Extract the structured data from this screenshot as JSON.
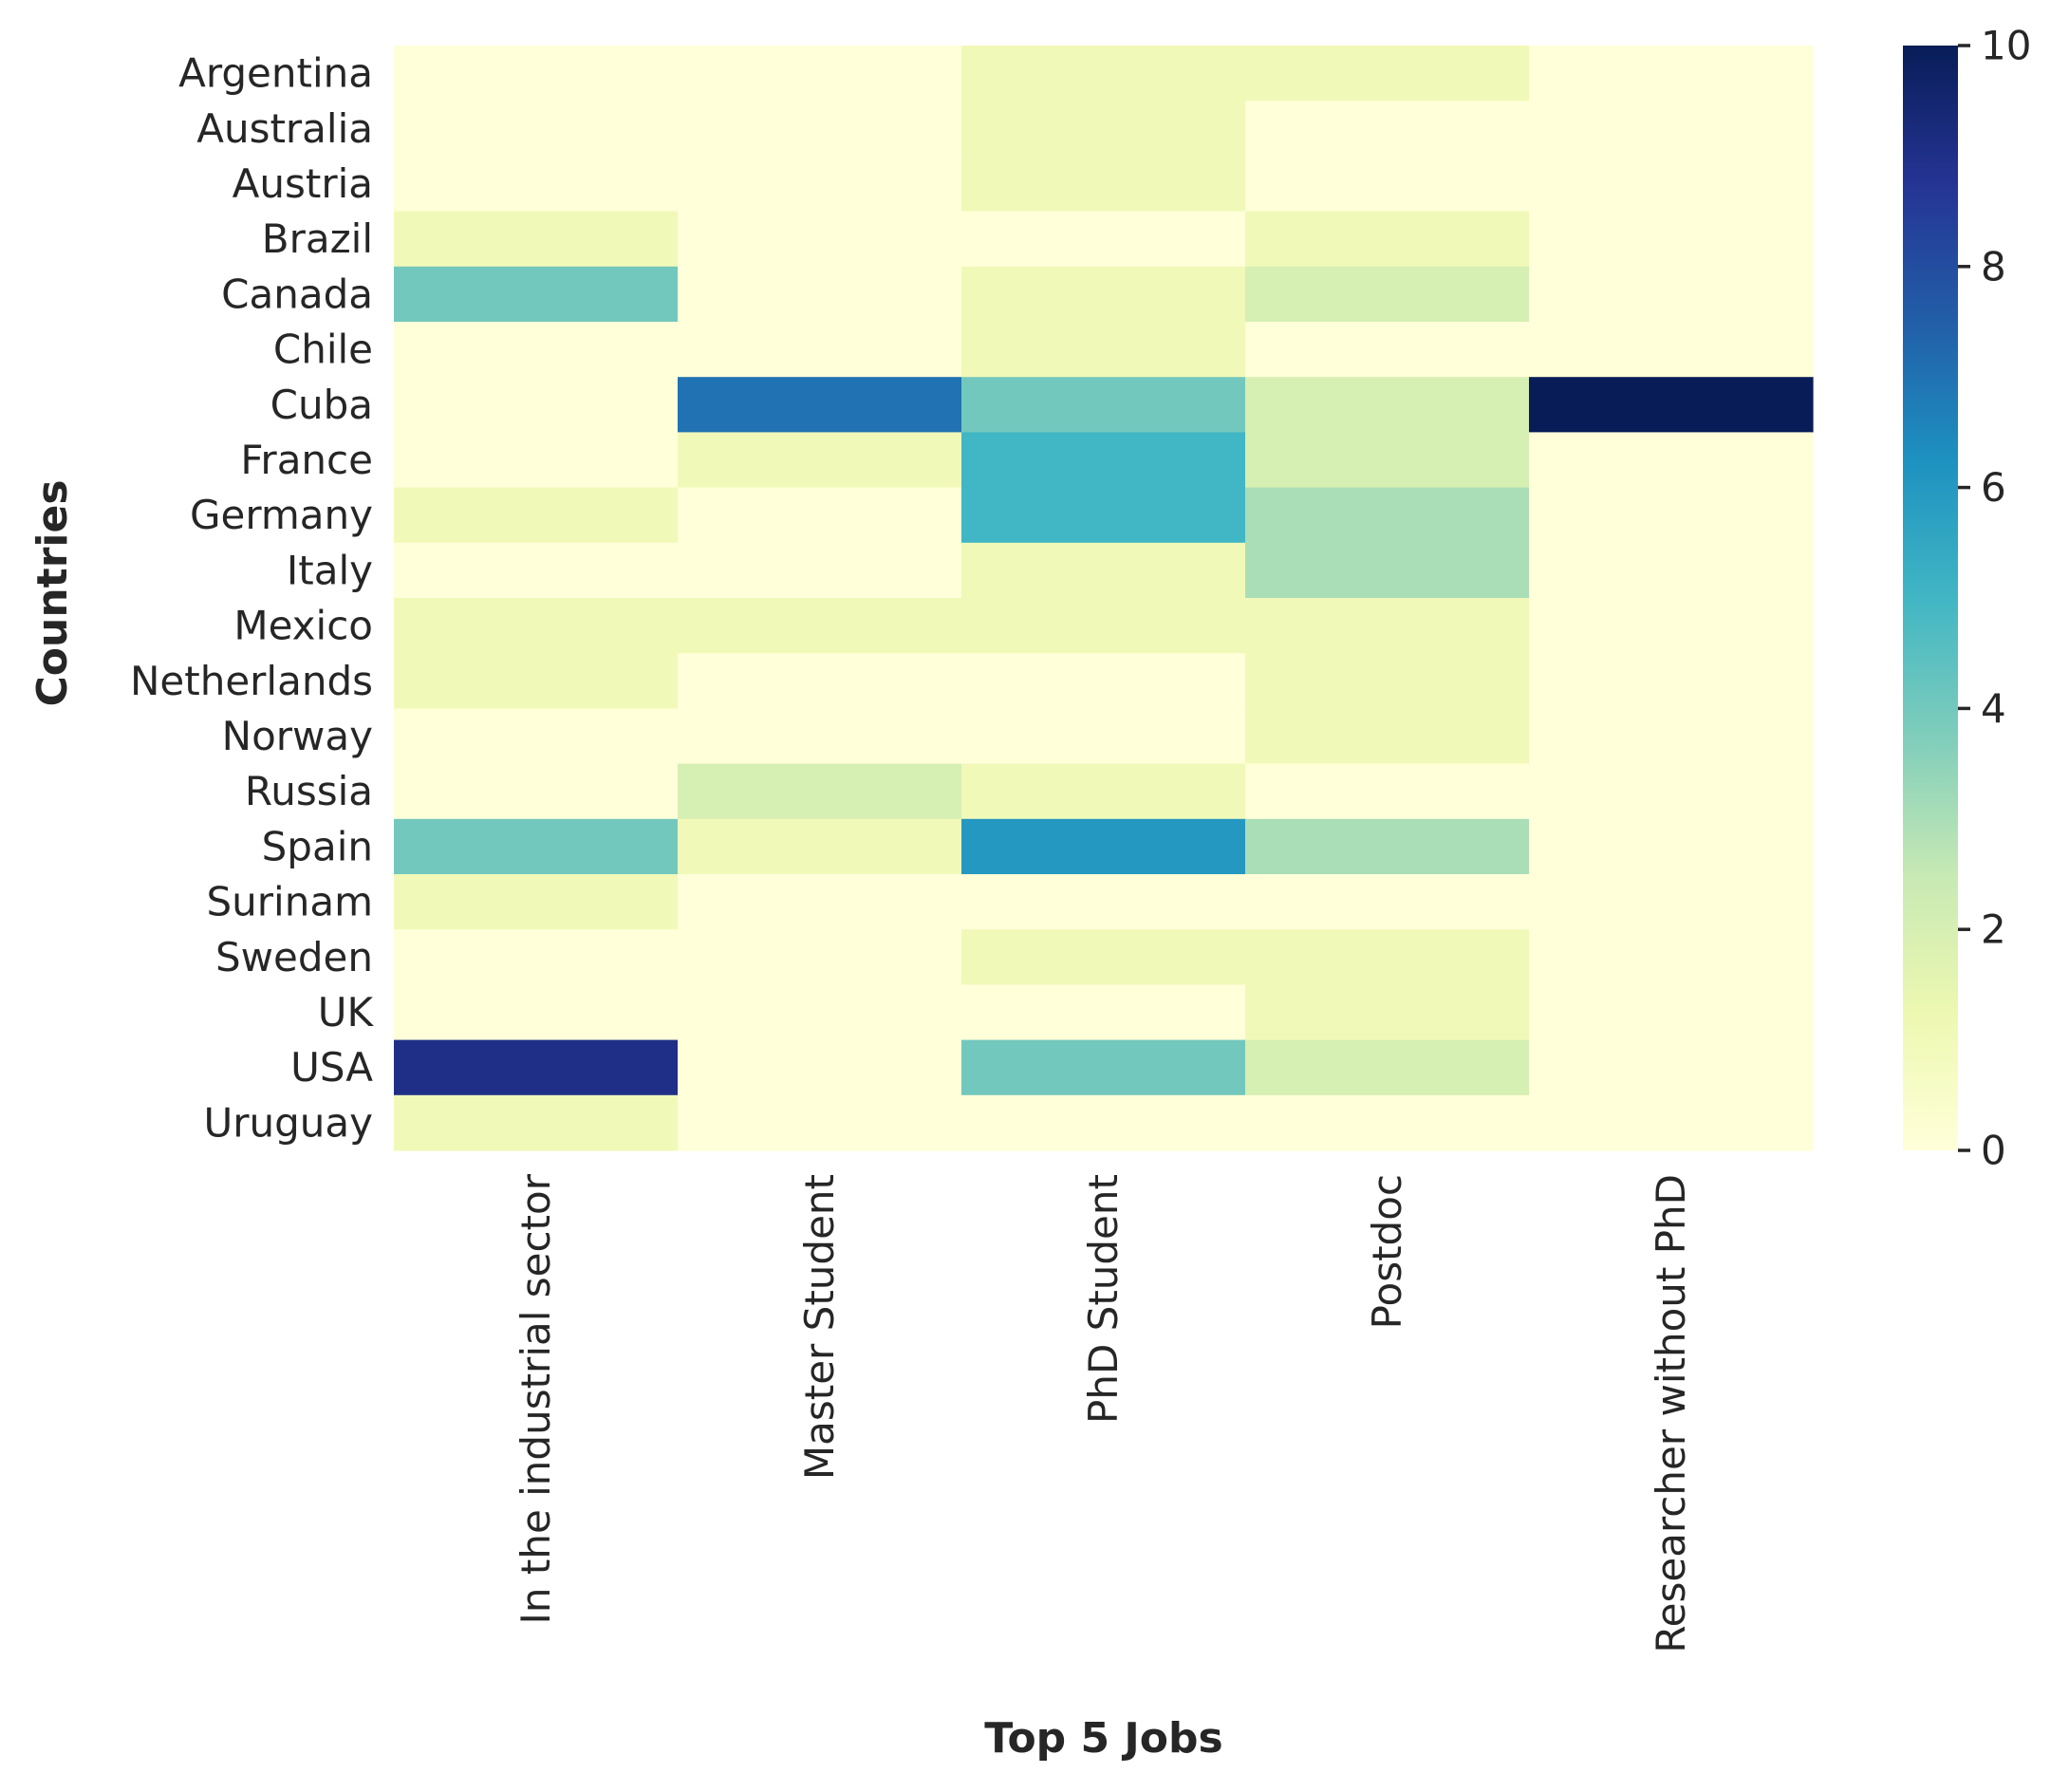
{
  "chart_data": {
    "type": "heatmap",
    "xlabel": "Top 5 Jobs",
    "ylabel": "Countries",
    "x_categories": [
      "In the industrial sector",
      "Master Student",
      "PhD Student",
      "Postdoc",
      "Researcher without PhD"
    ],
    "y_categories": [
      "Argentina",
      "Australia",
      "Austria",
      "Brazil",
      "Canada",
      "Chile",
      "Cuba",
      "France",
      "Germany",
      "Italy",
      "Mexico",
      "Netherlands",
      "Norway",
      "Russia",
      "Spain",
      "Surinam",
      "Sweden",
      "UK",
      "USA",
      "Uruguay"
    ],
    "values": [
      [
        0,
        0,
        1,
        1,
        0
      ],
      [
        0,
        0,
        1,
        0,
        0
      ],
      [
        0,
        0,
        1,
        0,
        0
      ],
      [
        1,
        0,
        0,
        1,
        0
      ],
      [
        4,
        0,
        1,
        2,
        0
      ],
      [
        0,
        0,
        1,
        0,
        0
      ],
      [
        0,
        7,
        4,
        2,
        10
      ],
      [
        0,
        1,
        5,
        2,
        0
      ],
      [
        1,
        0,
        5,
        3,
        0
      ],
      [
        0,
        0,
        1,
        3,
        0
      ],
      [
        1,
        1,
        1,
        1,
        0
      ],
      [
        1,
        0,
        0,
        1,
        0
      ],
      [
        0,
        0,
        0,
        1,
        0
      ],
      [
        0,
        2,
        1,
        0,
        0
      ],
      [
        4,
        1,
        6,
        3,
        0
      ],
      [
        1,
        0,
        0,
        0,
        0
      ],
      [
        0,
        0,
        1,
        1,
        0
      ],
      [
        0,
        0,
        0,
        1,
        0
      ],
      [
        9,
        0,
        4,
        2,
        0
      ],
      [
        1,
        0,
        0,
        0,
        0
      ]
    ],
    "colorscale": "YlGnBu",
    "vmin": 0,
    "vmax": 10,
    "colorbar_ticks": [
      0,
      2,
      4,
      6,
      8,
      10
    ]
  }
}
